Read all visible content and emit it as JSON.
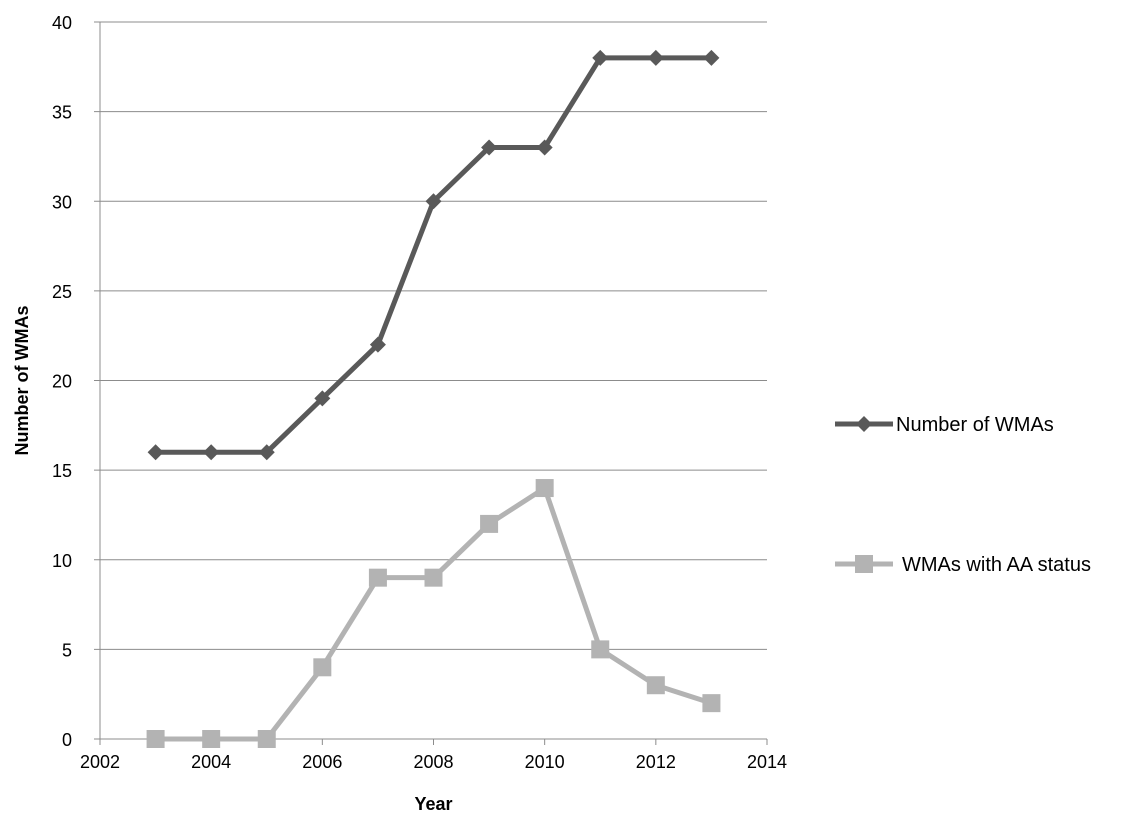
{
  "chart_data": {
    "type": "line",
    "title": "",
    "xlabel": "Year",
    "ylabel": "Number  of  WMAs",
    "xlim": [
      2002,
      2014
    ],
    "ylim": [
      0,
      40
    ],
    "x_ticks": [
      2002,
      2004,
      2006,
      2008,
      2010,
      2012,
      2014
    ],
    "y_ticks": [
      0,
      5,
      10,
      15,
      20,
      25,
      30,
      35,
      40
    ],
    "grid": "horizontal",
    "legend": "right",
    "x": [
      2003,
      2004,
      2005,
      2006,
      2007,
      2008,
      2009,
      2010,
      2011,
      2012,
      2013
    ],
    "series": [
      {
        "name": "Number of WMAs",
        "marker": "diamond",
        "color": "#595959",
        "values": [
          16,
          16,
          16,
          19,
          22,
          30,
          33,
          33,
          38,
          38,
          38
        ]
      },
      {
        "name": "WMAs with AA status",
        "marker": "square",
        "color": "#b3b3b3",
        "values": [
          0,
          0,
          0,
          4,
          9,
          9,
          12,
          14,
          5,
          3,
          2
        ]
      }
    ]
  }
}
